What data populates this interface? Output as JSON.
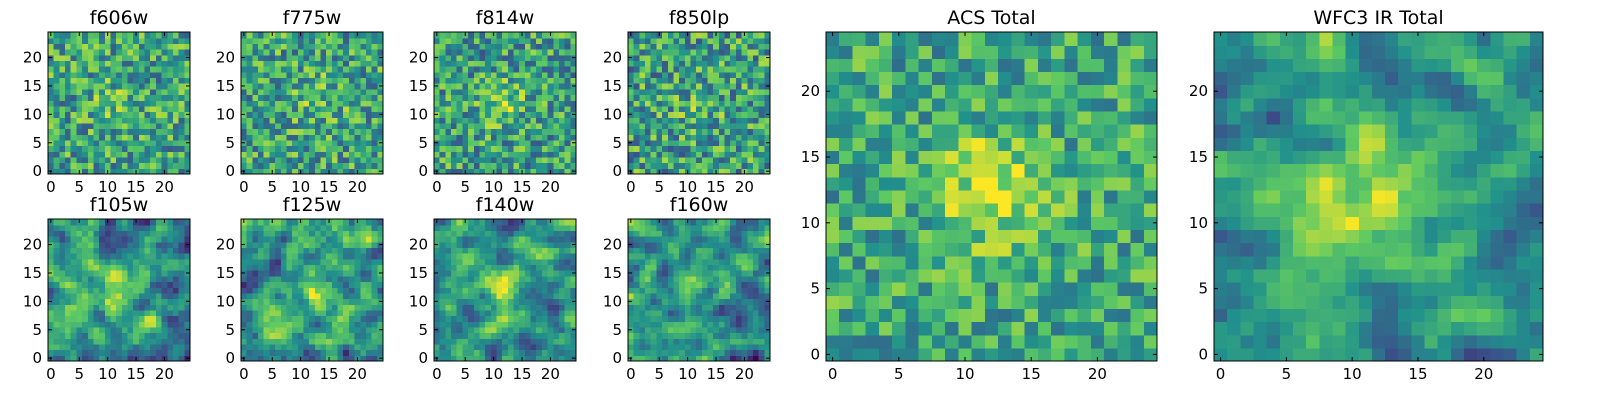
{
  "figure": {
    "colormap": "viridis",
    "colormap_stops": [
      "#440154",
      "#3b528b",
      "#21918c",
      "#5ec962",
      "#fde725"
    ],
    "axes_color": "#000000",
    "background": "#ffffff"
  },
  "chart_data": [
    {
      "type": "heatmap",
      "id": "f606w",
      "title": "f606w",
      "grid_size": 25,
      "xlim": [
        -0.5,
        24.5
      ],
      "ylim": [
        -0.5,
        24.5
      ],
      "xticks": [
        0,
        5,
        10,
        15,
        20
      ],
      "yticks": [
        0,
        5,
        10,
        15,
        20
      ],
      "peak": [
        11.5,
        12.5
      ],
      "peak_strength": 0.1,
      "peak_sigma": 3.0,
      "noise": 0.3,
      "smooth": false,
      "base": 0.58,
      "seed": 11
    },
    {
      "type": "heatmap",
      "id": "f775w",
      "title": "f775w",
      "grid_size": 25,
      "xlim": [
        -0.5,
        24.5
      ],
      "ylim": [
        -0.5,
        24.5
      ],
      "xticks": [
        0,
        5,
        10,
        15,
        20
      ],
      "yticks": [
        0,
        5,
        10,
        15,
        20
      ],
      "peak": [
        12.5,
        13.0
      ],
      "peak_strength": 0.12,
      "peak_sigma": 3.0,
      "noise": 0.3,
      "smooth": false,
      "base": 0.58,
      "seed": 23
    },
    {
      "type": "heatmap",
      "id": "f814w",
      "title": "f814w",
      "grid_size": 25,
      "xlim": [
        -0.5,
        24.5
      ],
      "ylim": [
        -0.5,
        24.5
      ],
      "xticks": [
        0,
        5,
        10,
        15,
        20
      ],
      "yticks": [
        0,
        5,
        10,
        15,
        20
      ],
      "peak": [
        11.5,
        12.0
      ],
      "peak_strength": 0.22,
      "peak_sigma": 2.8,
      "noise": 0.3,
      "smooth": false,
      "base": 0.56,
      "seed": 37
    },
    {
      "type": "heatmap",
      "id": "f850lp",
      "title": "f850lp",
      "grid_size": 25,
      "xlim": [
        -0.5,
        24.5
      ],
      "ylim": [
        -0.5,
        24.5
      ],
      "xticks": [
        0,
        5,
        10,
        15,
        20
      ],
      "yticks": [
        0,
        5,
        10,
        15,
        20
      ],
      "peak": [
        12.0,
        12.0
      ],
      "peak_strength": 0.1,
      "peak_sigma": 3.0,
      "noise": 0.32,
      "smooth": false,
      "base": 0.56,
      "seed": 41
    },
    {
      "type": "heatmap",
      "id": "f105w",
      "title": "f105w",
      "grid_size": 25,
      "xlim": [
        -0.5,
        24.5
      ],
      "ylim": [
        -0.5,
        24.5
      ],
      "xticks": [
        0,
        5,
        10,
        15,
        20
      ],
      "yticks": [
        0,
        5,
        10,
        15,
        20
      ],
      "peak": [
        11.5,
        11.5
      ],
      "peak_strength": 0.3,
      "peak_sigma": 2.6,
      "noise": 0.36,
      "smooth": true,
      "base": 0.52,
      "seed": 53
    },
    {
      "type": "heatmap",
      "id": "f125w",
      "title": "f125w",
      "grid_size": 25,
      "xlim": [
        -0.5,
        24.5
      ],
      "ylim": [
        -0.5,
        24.5
      ],
      "xticks": [
        0,
        5,
        10,
        15,
        20
      ],
      "yticks": [
        0,
        5,
        10,
        15,
        20
      ],
      "peak": [
        12.0,
        12.0
      ],
      "peak_strength": 0.14,
      "peak_sigma": 2.8,
      "noise": 0.38,
      "smooth": true,
      "base": 0.56,
      "seed": 67
    },
    {
      "type": "heatmap",
      "id": "f140w",
      "title": "f140w",
      "grid_size": 25,
      "xlim": [
        -0.5,
        24.5
      ],
      "ylim": [
        -0.5,
        24.5
      ],
      "xticks": [
        0,
        5,
        10,
        15,
        20
      ],
      "yticks": [
        0,
        5,
        10,
        15,
        20
      ],
      "peak": [
        12.5,
        12.5
      ],
      "peak_strength": 0.34,
      "peak_sigma": 2.6,
      "noise": 0.36,
      "smooth": true,
      "base": 0.5,
      "seed": 71
    },
    {
      "type": "heatmap",
      "id": "f160w",
      "title": "f160w",
      "grid_size": 25,
      "xlim": [
        -0.5,
        24.5
      ],
      "ylim": [
        -0.5,
        24.5
      ],
      "xticks": [
        0,
        5,
        10,
        15,
        20
      ],
      "yticks": [
        0,
        5,
        10,
        15,
        20
      ],
      "peak": [
        12.5,
        12.0
      ],
      "peak_strength": 0.34,
      "peak_sigma": 2.6,
      "noise": 0.36,
      "smooth": true,
      "base": 0.5,
      "seed": 83
    },
    {
      "type": "heatmap",
      "id": "acs-total",
      "title": "ACS Total",
      "grid_size": 25,
      "xlim": [
        -0.5,
        24.5
      ],
      "ylim": [
        -0.5,
        24.5
      ],
      "xticks": [
        0,
        5,
        10,
        15,
        20
      ],
      "yticks": [
        0,
        5,
        10,
        15,
        20
      ],
      "peak": [
        12.0,
        12.5
      ],
      "peak_strength": 0.34,
      "peak_sigma": 2.8,
      "noise": 0.24,
      "smooth": false,
      "base": 0.6,
      "seed": 97
    },
    {
      "type": "heatmap",
      "id": "wfc3-ir-total",
      "title": "WFC3 IR Total",
      "grid_size": 25,
      "xlim": [
        -0.5,
        24.5
      ],
      "ylim": [
        -0.5,
        24.5
      ],
      "xticks": [
        0,
        5,
        10,
        15,
        20
      ],
      "yticks": [
        0,
        5,
        10,
        15,
        20
      ],
      "peak": [
        12.0,
        12.0
      ],
      "peak_strength": 0.42,
      "peak_sigma": 3.6,
      "noise": 0.28,
      "smooth": true,
      "base": 0.52,
      "seed": 101
    }
  ]
}
